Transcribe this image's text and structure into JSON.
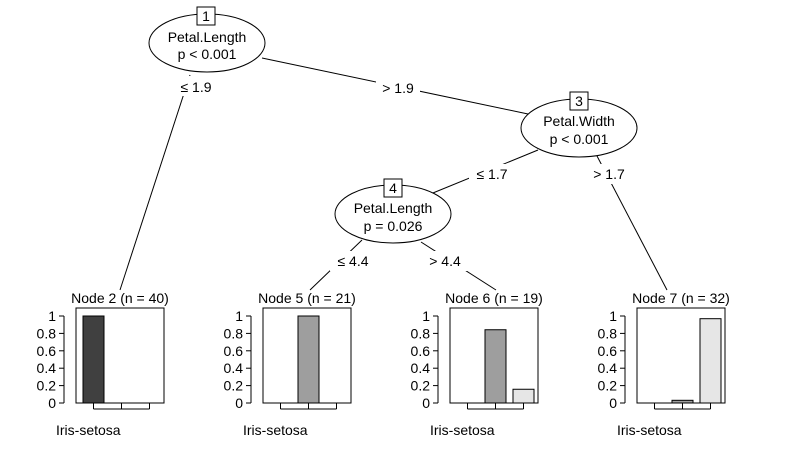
{
  "inner_nodes": [
    {
      "id": "1",
      "variable": "Petal.Length",
      "p_value": "p < 0.001"
    },
    {
      "id": "3",
      "variable": "Petal.Width",
      "p_value": "p < 0.001"
    },
    {
      "id": "4",
      "variable": "Petal.Length",
      "p_value": "p = 0.026"
    }
  ],
  "edge_labels": {
    "n1_left": "≤ 1.9",
    "n1_right": "> 1.9",
    "n3_left": "≤ 1.7",
    "n3_right": "> 1.7",
    "n4_left": "≤ 4.4",
    "n4_right": "> 4.4"
  },
  "terminal_nodes": [
    {
      "title": "Node 2 (n = 40)",
      "values": [
        1.0,
        0.0,
        0.0
      ],
      "category_label": "Iris-setosa"
    },
    {
      "title": "Node 5 (n = 21)",
      "values": [
        0.0,
        1.0,
        0.0
      ],
      "category_label": "Iris-setosa"
    },
    {
      "title": "Node 6 (n = 19)",
      "values": [
        0.0,
        0.842,
        0.158
      ],
      "category_label": "Iris-setosa"
    },
    {
      "title": "Node 7 (n = 32)",
      "values": [
        0.0,
        0.031,
        0.969
      ],
      "category_label": "Iris-setosa"
    }
  ],
  "y_ticks": [
    "0",
    "0.2",
    "0.4",
    "0.6",
    "0.8",
    "1"
  ],
  "class_colors": [
    "#404040",
    "#9e9e9e",
    "#e6e6e6"
  ]
}
